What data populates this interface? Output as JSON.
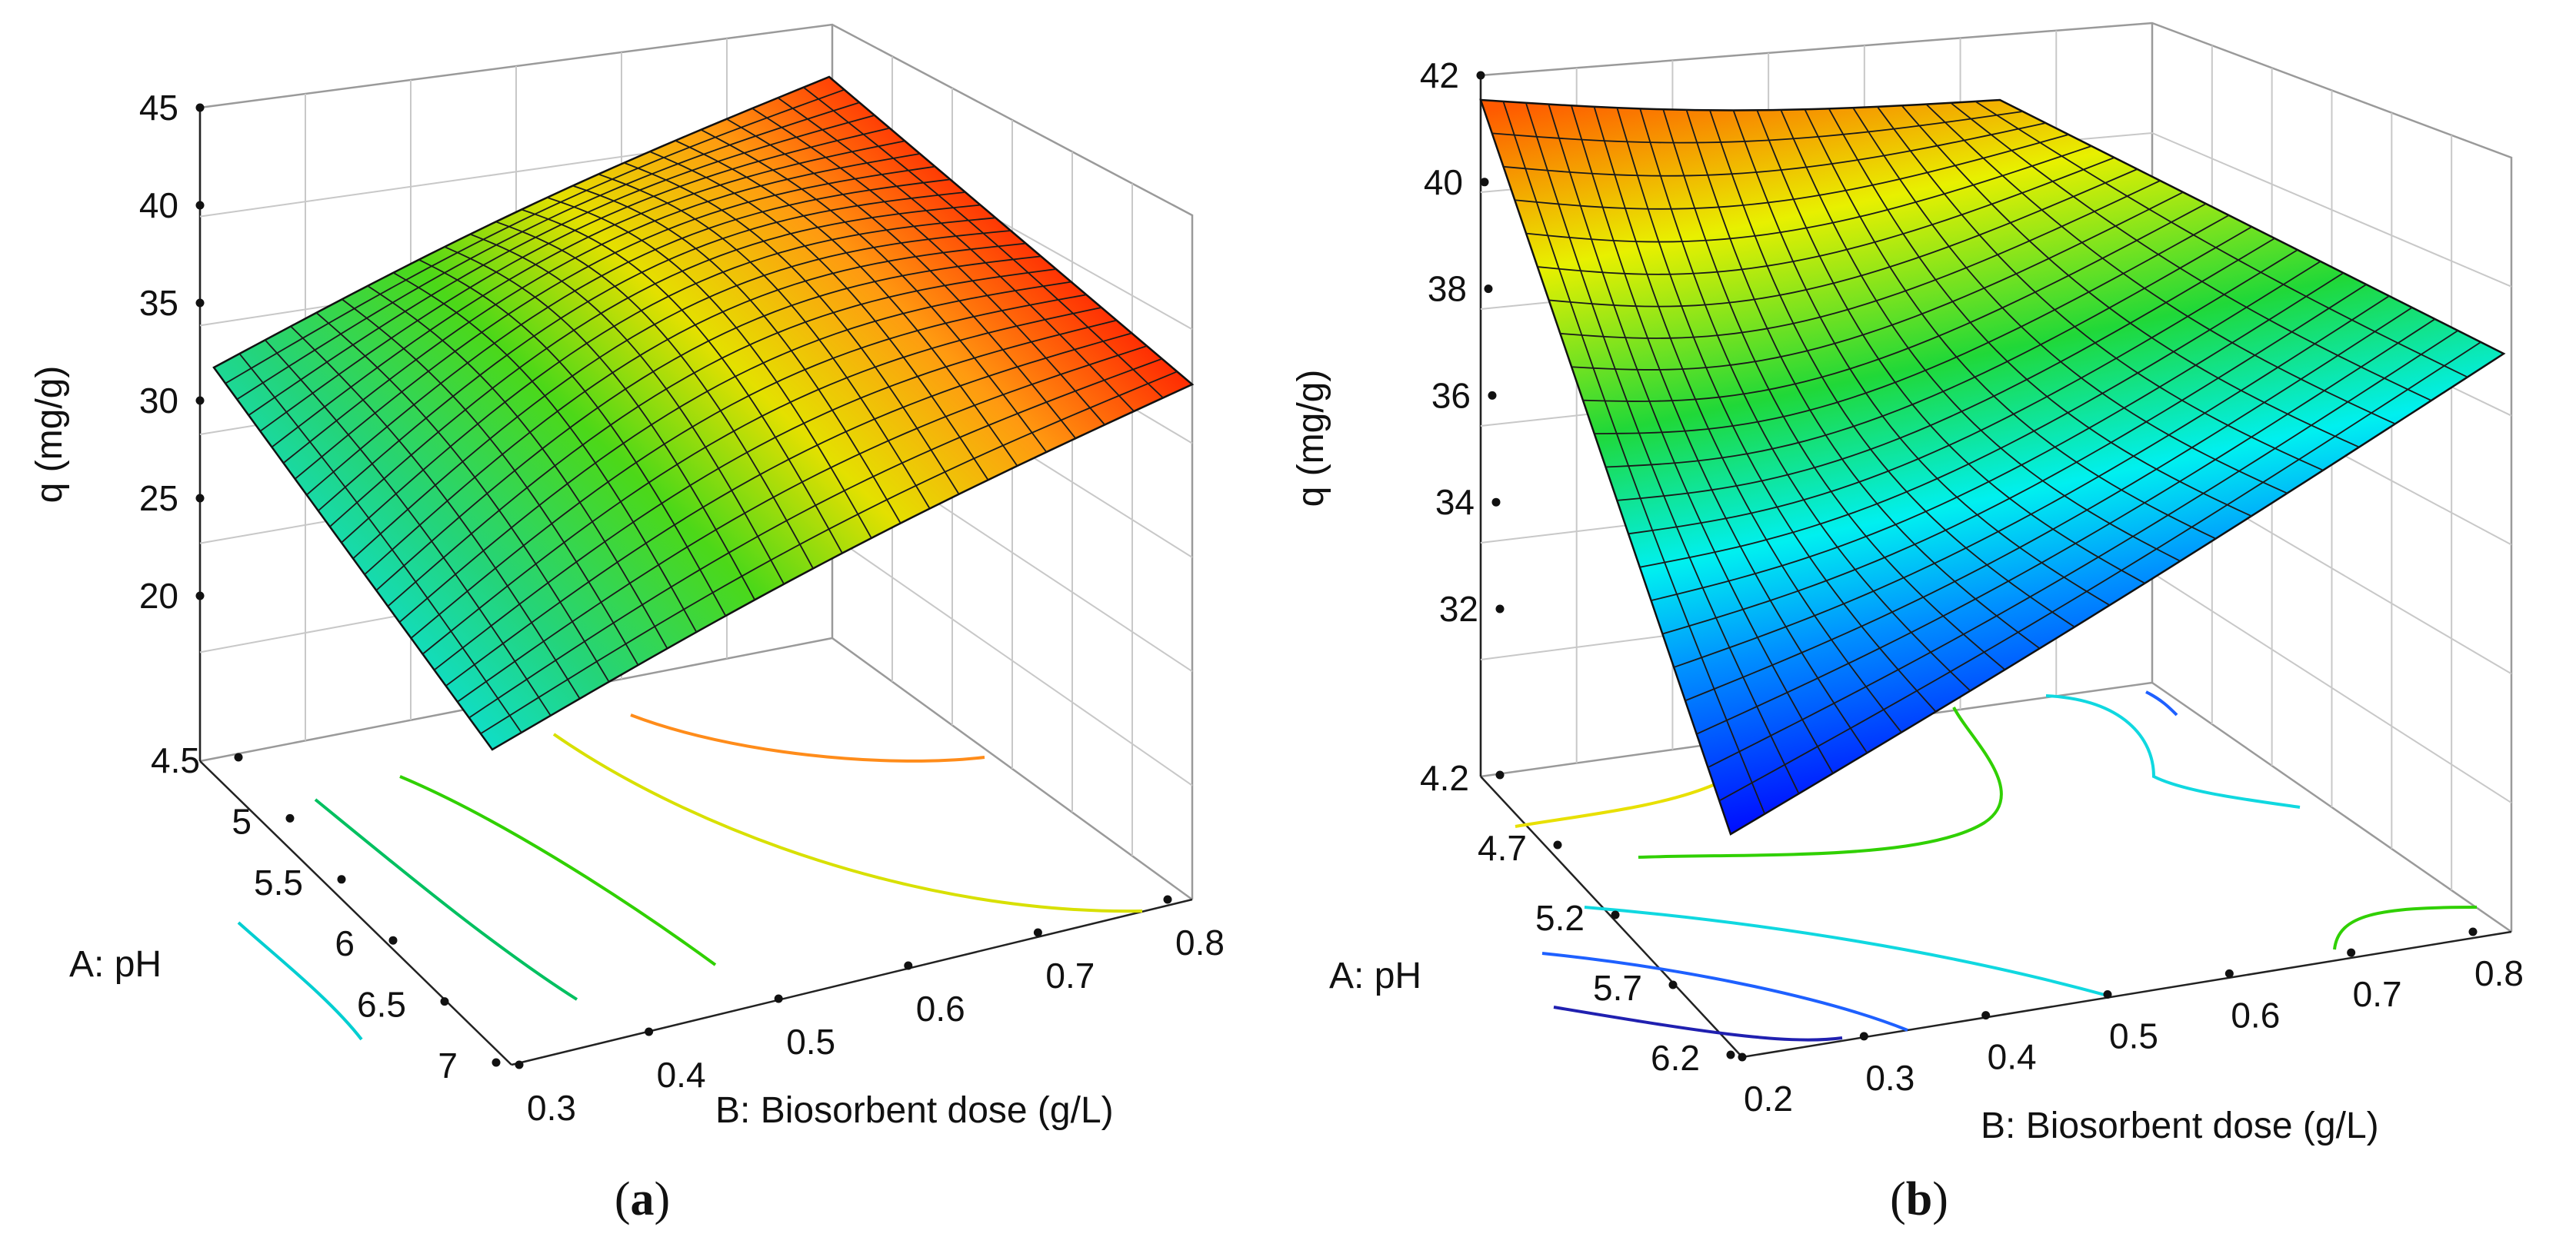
{
  "chart_data": [
    {
      "type": "surface3d",
      "panel_label": "a",
      "zlabel": "q (mg/g)",
      "xlabel": "A: pH",
      "ylabel": "B: Biosorbent dose (g/L)",
      "z_ticks": [
        "20",
        "25",
        "30",
        "35",
        "40",
        "45"
      ],
      "x_ticks": [
        "4.5",
        "5",
        "5.5",
        "6",
        "6.5",
        "7"
      ],
      "y_ticks": [
        "0.3",
        "0.4",
        "0.5",
        "0.6",
        "0.7",
        "0.8"
      ],
      "xlim": [
        4.5,
        7
      ],
      "ylim": [
        0.3,
        0.8
      ],
      "zlim": [
        15,
        45
      ],
      "corner_values": [
        {
          "pH": 4.5,
          "dose": 0.3,
          "q": 30.5
        },
        {
          "pH": 4.5,
          "dose": 0.8,
          "q": 43.5
        },
        {
          "pH": 7,
          "dose": 0.8,
          "q": 32
        },
        {
          "pH": 7,
          "dose": 0.3,
          "q": 18
        }
      ],
      "contours": [
        {
          "level": 20,
          "color": "#00ced1"
        },
        {
          "level": 25,
          "color": "#00c060"
        },
        {
          "level": 30,
          "color": "#30d000"
        },
        {
          "level": 35,
          "color": "#d8e000"
        },
        {
          "level": 40,
          "color": "#ff8c1a"
        }
      ]
    },
    {
      "type": "surface3d",
      "panel_label": "b",
      "zlabel": "q (mg/g)",
      "xlabel": "A: pH",
      "ylabel": "B: Biosorbent dose (g/L)",
      "z_ticks": [
        "32",
        "34",
        "36",
        "38",
        "40",
        "42"
      ],
      "x_ticks": [
        "4.2",
        "4.7",
        "5.2",
        "5.7",
        "6.2"
      ],
      "y_ticks": [
        "0.2",
        "0.3",
        "0.4",
        "0.5",
        "0.6",
        "0.7",
        "0.8"
      ],
      "xlim": [
        4.2,
        6.2
      ],
      "ylim": [
        0.2,
        0.8
      ],
      "zlim": [
        30,
        42
      ],
      "corner_values": [
        {
          "pH": 4.2,
          "dose": 0.2,
          "q": 41.2
        },
        {
          "pH": 4.2,
          "dose": 0.8,
          "q": 36.2
        },
        {
          "pH": 6.2,
          "dose": 0.8,
          "q": 36.2
        },
        {
          "pH": 6.2,
          "dose": 0.2,
          "q": 30.5
        }
      ],
      "contours": [
        {
          "level": 32,
          "color": "#2020b0"
        },
        {
          "level": 34,
          "color": "#1e60ff"
        },
        {
          "level": 36,
          "color": "#10d8e0"
        },
        {
          "level": 38,
          "color": "#30d000"
        },
        {
          "level": 40,
          "color": "#e8e000"
        }
      ]
    }
  ]
}
